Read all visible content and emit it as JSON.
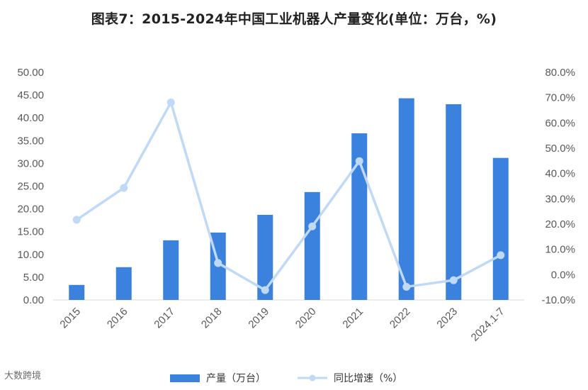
{
  "title": "图表7：2015-2024年中国工业机器人产量变化(单位：万台，%)",
  "source_mark": "大数跨境",
  "chart_data": {
    "type": "bar",
    "categories": [
      "2015",
      "2016",
      "2017",
      "2018",
      "2019",
      "2020",
      "2021",
      "2022",
      "2023",
      "2024.1-7"
    ],
    "series": [
      {
        "name": "产量（万台）",
        "type": "bar",
        "axis": "left",
        "values": [
          3.3,
          7.2,
          13.1,
          14.8,
          18.7,
          23.7,
          36.6,
          44.3,
          43.0,
          31.2
        ]
      },
      {
        "name": "同比增速（%）",
        "type": "line",
        "axis": "right",
        "values": [
          21.7,
          34.3,
          68.1,
          4.6,
          -6.1,
          19.1,
          44.9,
          -4.8,
          -2.2,
          7.7
        ]
      }
    ],
    "y_left": {
      "ylim": [
        0,
        50
      ],
      "ticks": [
        "0.00",
        "5.00",
        "10.00",
        "15.00",
        "20.00",
        "25.00",
        "30.00",
        "35.00",
        "40.00",
        "45.00",
        "50.00"
      ]
    },
    "y_right": {
      "ylim": [
        -10,
        80
      ],
      "ticks": [
        "-10.0%",
        "0.0%",
        "10.0%",
        "20.0%",
        "30.0%",
        "40.0%",
        "50.0%",
        "60.0%",
        "70.0%",
        "80.0%"
      ]
    },
    "grid": false,
    "legend_position": "bottom-center",
    "colors": {
      "bar": "#3a82dd",
      "line": "#bfd9f7",
      "marker": "#bfd9f7",
      "tick_text": "#595959"
    }
  }
}
